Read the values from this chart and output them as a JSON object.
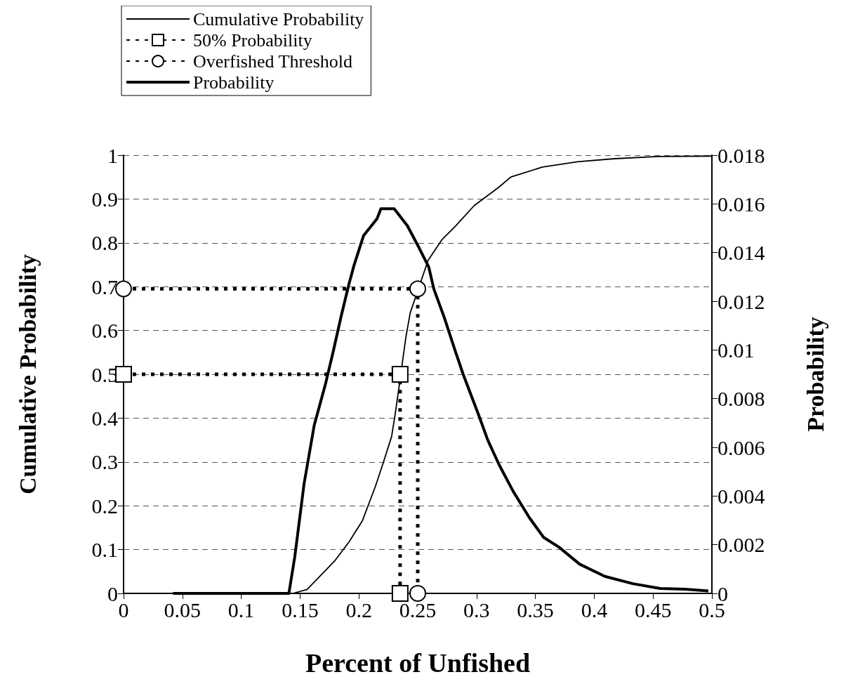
{
  "chart_data": {
    "type": "line",
    "xlabel": "Percent of Unfished",
    "ylabel": "Cumulative Probability",
    "y2label": "Probability",
    "xlim": [
      0,
      0.5
    ],
    "xticks": [
      0,
      0.05,
      0.1,
      0.15,
      0.2,
      0.25,
      0.3,
      0.35,
      0.4,
      0.45,
      0.5
    ],
    "ylim": [
      0,
      1
    ],
    "yticks": [
      0,
      0.1,
      0.2,
      0.3,
      0.4,
      0.5,
      0.6,
      0.7,
      0.8,
      0.9,
      1
    ],
    "y2lim": [
      0,
      0.018
    ],
    "y2ticks": [
      0,
      0.002,
      0.004,
      0.006,
      0.008,
      0.01,
      0.012,
      0.014,
      0.016,
      0.018
    ],
    "grid": "y",
    "legend": "top left",
    "series": [
      {
        "name": "Cumulative Probability",
        "color": "#000000",
        "marker": "none",
        "line_style": "solid",
        "x": [
          0.144,
          0.156,
          0.169,
          0.18,
          0.1915,
          0.203,
          0.214,
          0.2207,
          0.2278,
          0.231,
          0.2345,
          0.2366,
          0.24,
          0.2436,
          0.2588,
          0.2705,
          0.282,
          0.298,
          0.319,
          0.329,
          0.356,
          0.3856,
          0.417,
          0.454,
          0.5
        ],
        "values": [
          0,
          0.009,
          0.045,
          0.076,
          0.117,
          0.166,
          0.244,
          0.298,
          0.358,
          0.412,
          0.478,
          0.52,
          0.586,
          0.64,
          0.76,
          0.807,
          0.838,
          0.885,
          0.927,
          0.95,
          0.973,
          0.985,
          0.992,
          0.997,
          0.998
        ]
      },
      {
        "name": "50% Probability",
        "color": "#000000",
        "marker": "square",
        "line_style": "dotted",
        "x": [
          0,
          0.235,
          0.235
        ],
        "values": [
          0.5,
          0.5,
          0
        ]
      },
      {
        "name": "Overfished Threshold",
        "color": "#000000",
        "marker": "circle",
        "line_style": "dotted",
        "x": [
          0,
          0.25,
          0.25
        ],
        "values": [
          0.695,
          0.695,
          0
        ]
      },
      {
        "name": "Probability",
        "color": "#000000",
        "marker": "none",
        "line_style": "solid",
        "axis": "y2",
        "x": [
          0.042,
          0.1405,
          0.1455,
          0.1534,
          0.162,
          0.1716,
          0.178,
          0.185,
          0.1915,
          0.196,
          0.204,
          0.2155,
          0.2187,
          0.23,
          0.2412,
          0.25,
          0.2594,
          0.2637,
          0.2728,
          0.2816,
          0.2886,
          0.302,
          0.3095,
          0.319,
          0.331,
          0.345,
          0.357,
          0.37,
          0.3876,
          0.409,
          0.4327,
          0.456,
          0.477,
          0.497
        ],
        "values": [
          0,
          0,
          0.0015,
          0.0045,
          0.0069,
          0.0086,
          0.0099,
          0.0114,
          0.0127,
          0.0135,
          0.0147,
          0.0154,
          0.0158,
          0.0158,
          0.0151,
          0.0143,
          0.0134,
          0.0125,
          0.0113,
          0.01,
          0.009,
          0.0073,
          0.0063,
          0.0053,
          0.0042,
          0.0031,
          0.0023,
          0.0019,
          0.0012,
          0.0007,
          0.0004,
          0.0002,
          0.00017,
          0.0001
        ]
      }
    ]
  }
}
